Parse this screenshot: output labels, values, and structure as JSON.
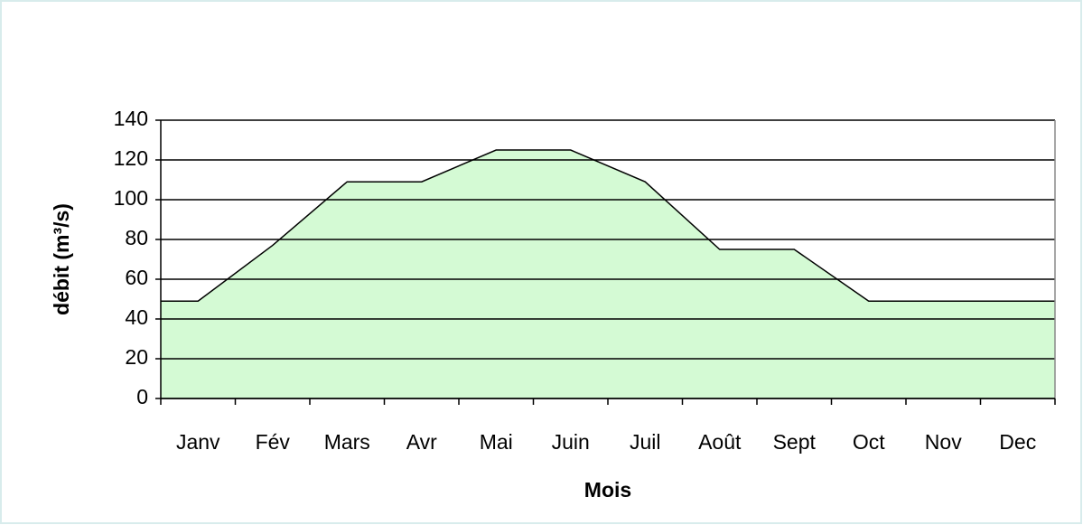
{
  "chart_data": {
    "type": "area",
    "x_label": "Mois",
    "y_label": "débit (m³/s)",
    "categories": [
      "Janv",
      "Fév",
      "Mars",
      "Avr",
      "Mai",
      "Juin",
      "Juil",
      "Août",
      "Sept",
      "Oct",
      "Nov",
      "Dec"
    ],
    "values": [
      49,
      77,
      109,
      109,
      125,
      125,
      109,
      75,
      75,
      49,
      49,
      49
    ],
    "color": "#d4fad4",
    "ylim": [
      0,
      140
    ],
    "yticks": [
      0,
      20,
      40,
      60,
      80,
      100,
      120,
      140
    ],
    "grid": true
  }
}
